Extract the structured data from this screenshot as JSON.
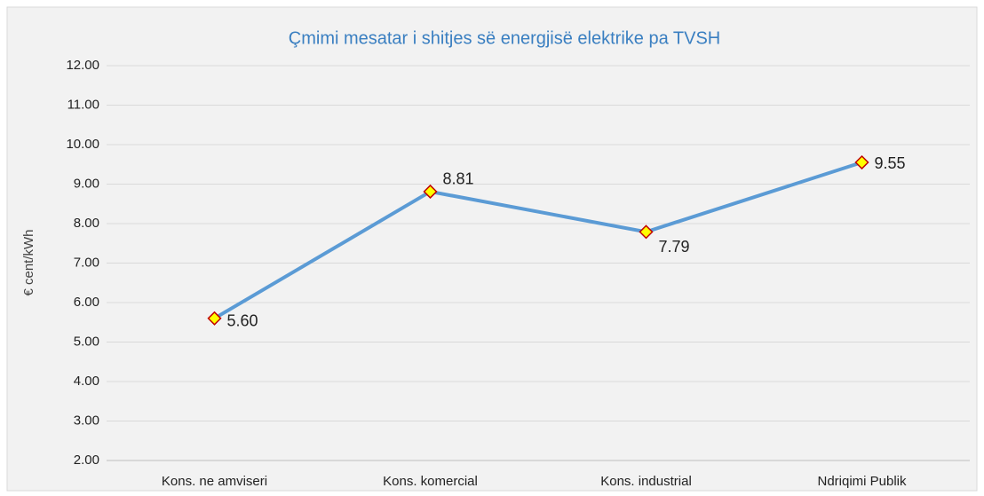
{
  "chart_data": {
    "type": "line",
    "title": "Çmimi mesatar i shitjes së energjisë elektrike pa TVSH",
    "y_label": "€ cent/kWh",
    "categories": [
      "Kons. ne amviseri",
      "Kons. komercial",
      "Kons. industrial",
      "Ndriqimi Publik"
    ],
    "series": [
      {
        "name": "Çmimi mesatar",
        "color": "#5b9bd5",
        "marker_fill": "#ffff00",
        "marker_stroke": "#c00000",
        "values": [
          5.6,
          8.81,
          7.79,
          9.55
        ],
        "value_labels": [
          "5.60",
          "8.81",
          "7.79",
          "9.55"
        ]
      }
    ],
    "ylim": [
      2,
      12
    ],
    "yticks": [
      {
        "value": 2,
        "label": "2.00"
      },
      {
        "value": 3,
        "label": "3.00"
      },
      {
        "value": 4,
        "label": "4.00"
      },
      {
        "value": 5,
        "label": "5.00"
      },
      {
        "value": 6,
        "label": "6.00"
      },
      {
        "value": 7,
        "label": "7.00"
      },
      {
        "value": 8,
        "label": "8.00"
      },
      {
        "value": 9,
        "label": "9.00"
      },
      {
        "value": 10,
        "label": "10.00"
      },
      {
        "value": 11,
        "label": "11.00"
      },
      {
        "value": 12,
        "label": "12.00"
      }
    ],
    "grid": true
  }
}
